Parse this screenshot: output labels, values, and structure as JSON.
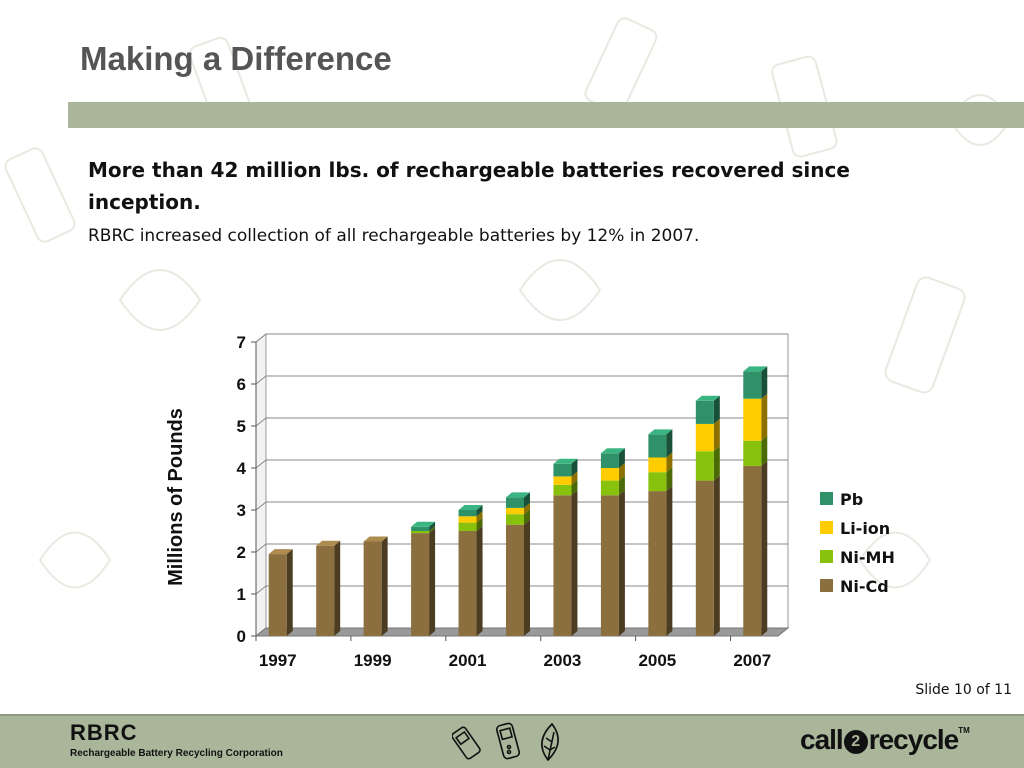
{
  "slide": {
    "title": "Making a Difference",
    "headline": "More than 42 million lbs. of rechargeable batteries recovered since inception.",
    "subline": "RBRC increased collection of all rechargeable batteries by 12% in 2007.",
    "slide_number": "Slide 10 of 11"
  },
  "footer": {
    "org_abbr": "RBRC",
    "org_name": "Rechargeable Battery Recycling Corporation",
    "logo": {
      "left": "call",
      "circle": "2",
      "right": "recycle",
      "tm": "TM"
    },
    "icons": [
      "cell-phone-icon",
      "mobile-phone-icon",
      "leaf-icon"
    ]
  },
  "colors": {
    "background_band": "#a9b69a",
    "Pb": "#2e9168",
    "Li-ion": "#ffcc00",
    "Ni-MH": "#88c20c",
    "Ni-Cd": "#8b6f3e"
  },
  "chart_data": {
    "type": "bar",
    "stacked": true,
    "three_d": true,
    "ylabel": "Millions of Pounds",
    "xlabel": "",
    "ylim": [
      0,
      7
    ],
    "yticks": [
      0,
      1,
      2,
      3,
      4,
      5,
      6,
      7
    ],
    "grid": true,
    "legend_position": "right",
    "categories": [
      "1997",
      "1998",
      "1999",
      "2000",
      "2001",
      "2002",
      "2003",
      "2004",
      "2005",
      "2006",
      "2007"
    ],
    "x_tick_labels": [
      "1997",
      "1999",
      "2001",
      "2003",
      "2005",
      "2007"
    ],
    "series": [
      {
        "name": "Ni-Cd",
        "values": [
          1.95,
          2.15,
          2.25,
          2.45,
          2.5,
          2.65,
          3.35,
          3.35,
          3.45,
          3.7,
          4.05
        ]
      },
      {
        "name": "Ni-MH",
        "values": [
          0,
          0,
          0,
          0.05,
          0.2,
          0.25,
          0.25,
          0.35,
          0.45,
          0.7,
          0.6
        ]
      },
      {
        "name": "Li-ion",
        "values": [
          0,
          0,
          0,
          0,
          0.15,
          0.15,
          0.2,
          0.3,
          0.35,
          0.65,
          1.0
        ]
      },
      {
        "name": "Pb",
        "values": [
          0,
          0,
          0,
          0.1,
          0.15,
          0.25,
          0.3,
          0.35,
          0.55,
          0.55,
          0.65
        ]
      }
    ],
    "legend_order": [
      "Pb",
      "Li-ion",
      "Ni-MH",
      "Ni-Cd"
    ]
  }
}
